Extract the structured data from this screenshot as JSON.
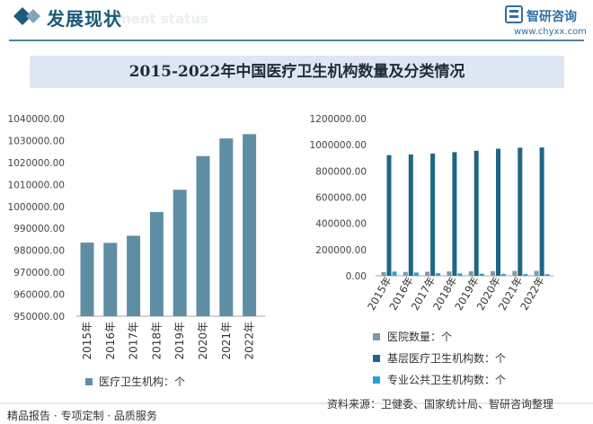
{
  "header": {
    "title": "发展现状",
    "subtitle_watermark": "ment status",
    "logo_name": "智研咨询",
    "logo_url": "www.chyxx.com"
  },
  "banner": {
    "title": "2015-2022年中国医疗卫生机构数量及分类情况"
  },
  "footer": {
    "left": "精品报告 · 专项定制 · 品质服务",
    "source": "资料来源：卫健委、国家统计局、智研咨询整理"
  },
  "colors": {
    "accent": "#1a5a7a",
    "banner_bg": "#dde7f2",
    "left_bar": "#5f8ea4",
    "hospital": "#7d99a8",
    "primary": "#1f6686",
    "public": "#2a9fd6"
  },
  "chart_data": [
    {
      "type": "bar",
      "categories": [
        "2015年",
        "2016年",
        "2017年",
        "2018年",
        "2019年",
        "2020年",
        "2021年",
        "2022年"
      ],
      "series": [
        {
          "name": "医疗卫生机构：个",
          "values": [
            983528,
            983394,
            986649,
            997433,
            1007579,
            1022922,
            1030935,
            1032918
          ]
        }
      ],
      "yticks": [
        "950000.00",
        "960000.00",
        "970000.00",
        "980000.00",
        "990000.00",
        "1000000.00",
        "1010000.00",
        "1020000.00",
        "1030000.00",
        "1040000.00"
      ],
      "ylim": [
        950000,
        1040000
      ],
      "legend_position": "bottom",
      "grid": false
    },
    {
      "type": "bar",
      "categories": [
        "2015年",
        "2016年",
        "2017年",
        "2018年",
        "2019年",
        "2020年",
        "2021年",
        "2022年"
      ],
      "series": [
        {
          "name": "医院数量：个",
          "values": [
            27587,
            29140,
            31056,
            33009,
            34354,
            35394,
            36570,
            36976
          ]
        },
        {
          "name": "基层医疗卫生机构数：个",
          "values": [
            920770,
            926518,
            933024,
            943639,
            954390,
            970036,
            977790,
            979768
          ]
        },
        {
          "name": "专业公共卫生机构数：个",
          "values": [
            31927,
            24866,
            19896,
            18033,
            15958,
            14492,
            13276,
            12436
          ]
        }
      ],
      "yticks": [
        "0.00",
        "200000.00",
        "400000.00",
        "600000.00",
        "800000.00",
        "1000000.00",
        "1200000.00"
      ],
      "ylim": [
        0,
        1200000
      ],
      "legend_position": "bottom",
      "grid": false
    }
  ]
}
